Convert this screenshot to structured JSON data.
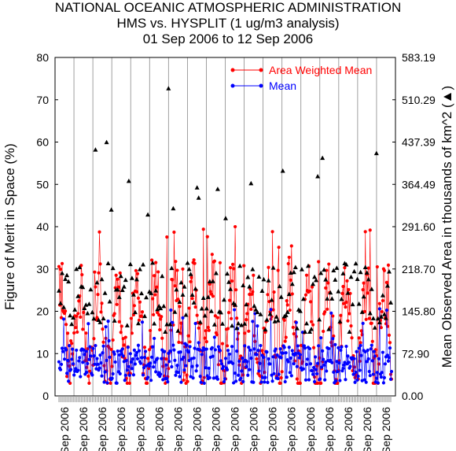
{
  "titles": {
    "line1": "NATIONAL OCEANIC ATMOSPHERIC ADMINISTRATION",
    "line2": "HMS vs. HYSPLIT (1 ug/m3 analysis)",
    "line3": "01 Sep 2006 to 12 Sep 2006"
  },
  "chart_data": {
    "type": "line",
    "ylabel": "Figure of Merit in Space (%)",
    "y2label": "Mean Observed Area in thousands of km^2 (▲)",
    "ylim": [
      0,
      80
    ],
    "y2lim": [
      0,
      583.19
    ],
    "yticks": [
      "0",
      "10",
      "20",
      "30",
      "40",
      "50",
      "60",
      "70",
      "80"
    ],
    "y2ticks": [
      "0.00",
      "72.90",
      "145.80",
      "218.70",
      "291.60",
      "364.49",
      "437.39",
      "510.29",
      "583.19"
    ],
    "x_tick_labels": [
      "Sep 2006",
      "Sep 2006",
      "Sep 2006",
      "Sep 2006",
      "Sep 2006",
      "Sep 2006",
      "Sep 2006",
      "Sep 2006",
      "Sep 2006",
      "Sep 2006",
      "Sep 2006",
      "Sep 2006",
      "Sep 2006",
      "Sep 2006",
      "Sep 2006",
      "Sep 2006",
      "Sep 2006",
      "Sep 2006"
    ],
    "grid": true,
    "legend_position": "top-right",
    "n_points": 420,
    "series": [
      {
        "name": "Area Weighted Mean",
        "color": "#ff0000",
        "marker": "circle",
        "summary": {
          "typical_min": 5,
          "typical_max": 41,
          "peak": 40.5
        }
      },
      {
        "name": "Mean",
        "color": "#0000ff",
        "marker": "circle",
        "summary": {
          "typical_min": 1,
          "typical_max": 22,
          "peak": 21
        }
      },
      {
        "name": "Mean Observed Area",
        "color": "#000000",
        "marker": "triangle",
        "axis": "right",
        "summary": {
          "typical_min": 80,
          "typical_max": 440,
          "peak": 583
        }
      }
    ]
  }
}
